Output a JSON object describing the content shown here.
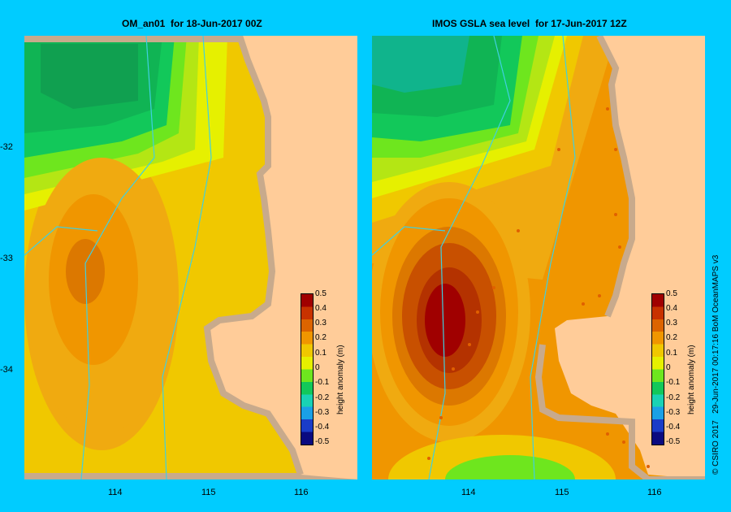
{
  "panels": [
    {
      "title": "OM_an01  for 18-Jun-2017 00Z"
    },
    {
      "title": "IMOS GSLA sea level  for 17-Jun-2017 12Z"
    }
  ],
  "y_ticks": [
    "-32",
    "-33",
    "-34"
  ],
  "x_ticks": [
    "114",
    "115",
    "116"
  ],
  "colorbar": {
    "title": "height anomaly (m)",
    "labels": [
      "0.5",
      "0.4",
      "0.3",
      "0.2",
      "0.1",
      "0",
      "-0.1",
      "-0.2",
      "-0.3",
      "-0.4",
      "-0.5"
    ],
    "colors": [
      "#0a0a80",
      "#1a3cc8",
      "#1aa0e6",
      "#19d2b4",
      "#12c85a",
      "#6ee61e",
      "#e6f000",
      "#f0c800",
      "#f09600",
      "#dc6400",
      "#c83200",
      "#a00000"
    ]
  },
  "credit": "© CSIRO 2017   29-Jun-2017 00:17:16 BoM OceanMAPS v3"
}
